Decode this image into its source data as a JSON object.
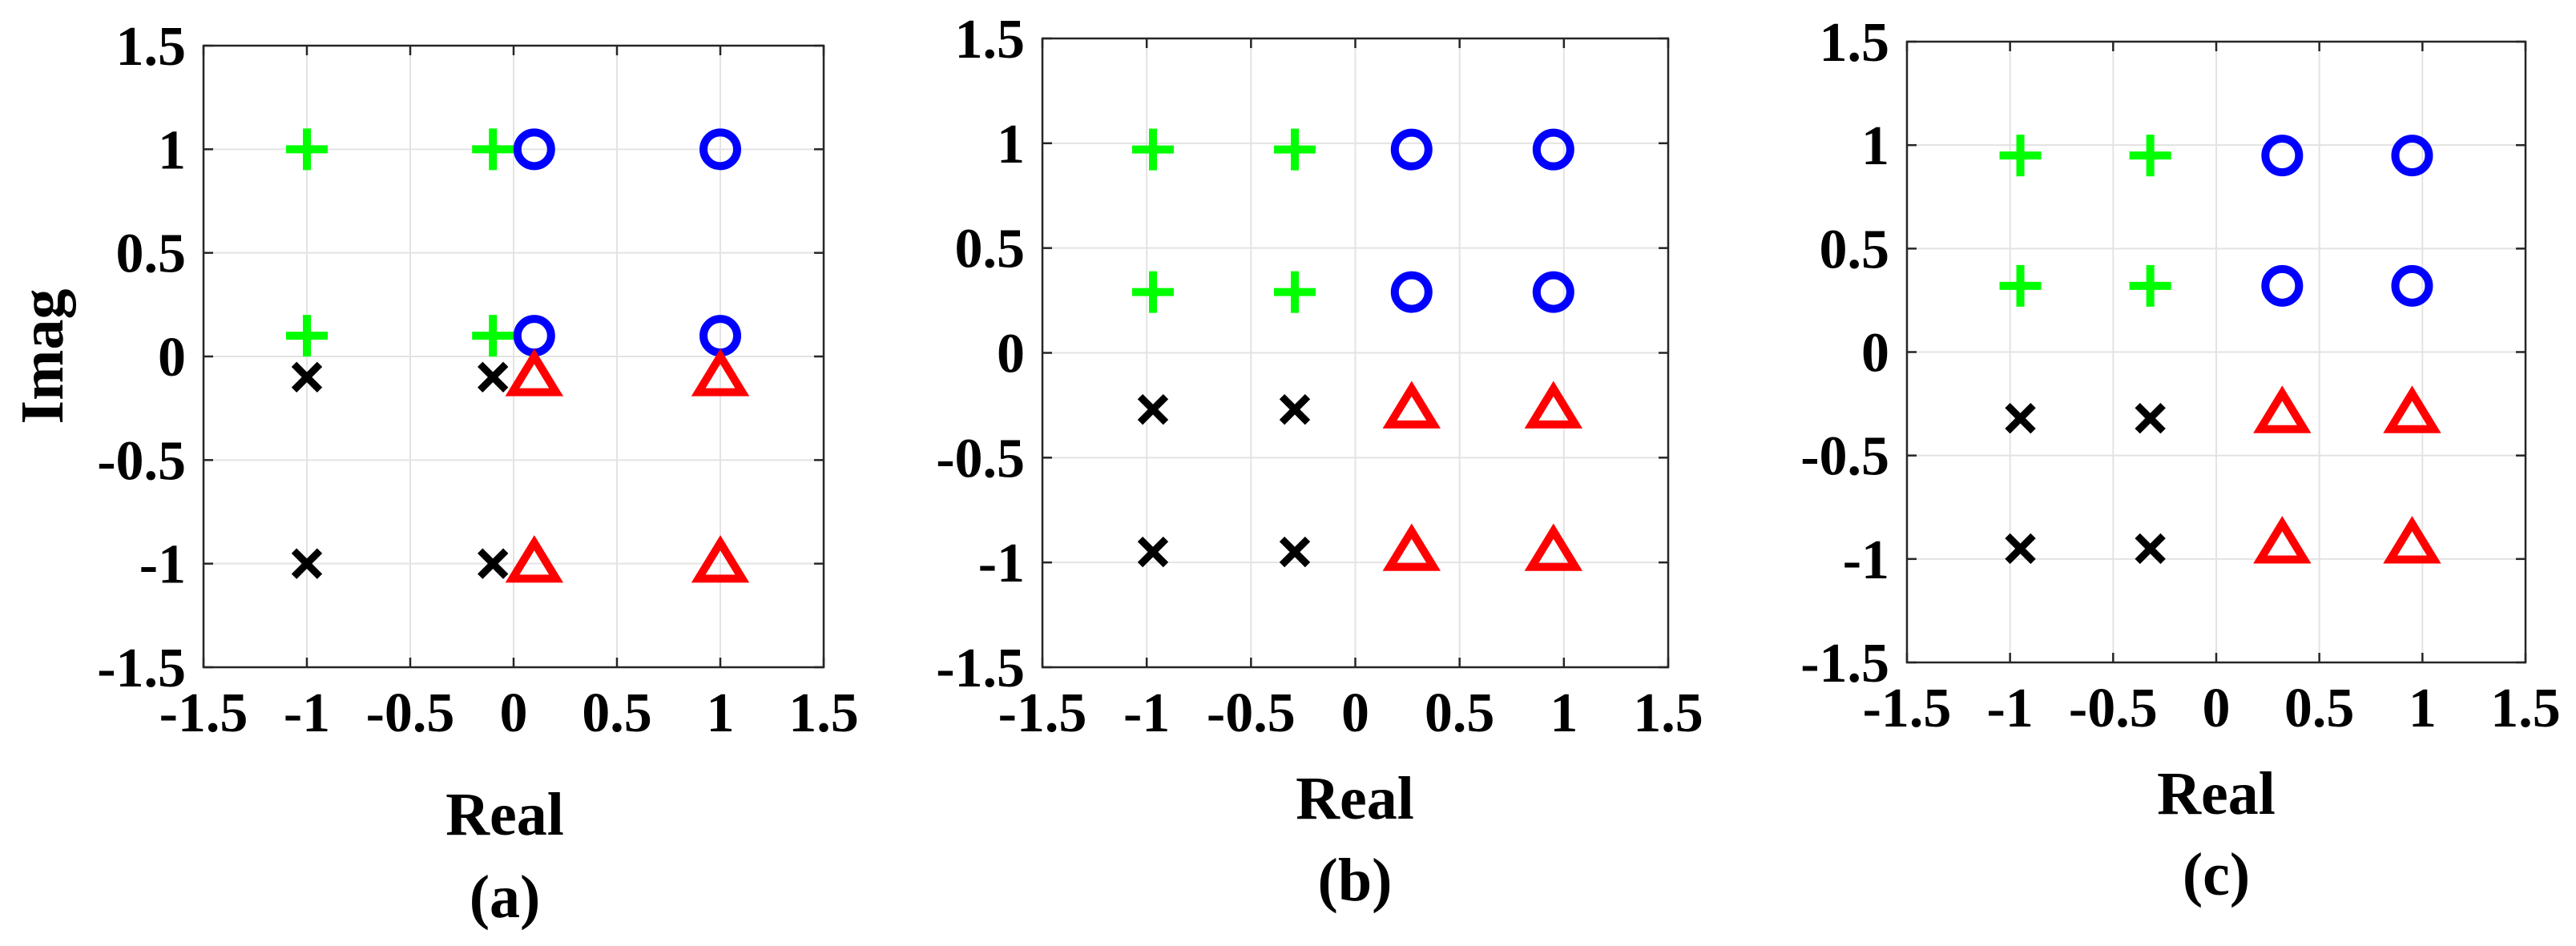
{
  "colors": {
    "plus": "#00ff00",
    "circle": "#0000ff",
    "triangle": "#ff0000",
    "cross": "#000000",
    "grid": "#e3e3e3",
    "axes": "#262626"
  },
  "chart_data": [
    {
      "type": "scatter",
      "caption": "(a)",
      "xlabel": "Real",
      "ylabel": "Imag",
      "xlim": [
        -1.5,
        1.5
      ],
      "ylim": [
        -1.5,
        1.5
      ],
      "xticks": [
        "-1.5",
        "-1",
        "-0.5",
        "0",
        "0.5",
        "1",
        "1.5"
      ],
      "yticks": [
        "-1.5",
        "-1",
        "-0.5",
        "0",
        "0.5",
        "1",
        "1.5"
      ],
      "grid": true,
      "series": [
        {
          "marker": "plus",
          "points": [
            [
              -1,
              1
            ],
            [
              -0.1,
              1
            ],
            [
              -1,
              0.1
            ],
            [
              -0.1,
              0.1
            ]
          ]
        },
        {
          "marker": "circle",
          "points": [
            [
              0.1,
              1
            ],
            [
              1,
              1
            ],
            [
              0.1,
              0.1
            ],
            [
              1,
              0.1
            ]
          ]
        },
        {
          "marker": "cross",
          "points": [
            [
              -1,
              -0.1
            ],
            [
              -0.1,
              -0.1
            ],
            [
              -1,
              -1
            ],
            [
              -0.1,
              -1
            ]
          ]
        },
        {
          "marker": "triangle",
          "points": [
            [
              0.1,
              -0.1
            ],
            [
              1,
              -0.1
            ],
            [
              0.1,
              -1
            ],
            [
              1,
              -1
            ]
          ]
        }
      ]
    },
    {
      "type": "scatter",
      "caption": "(b)",
      "xlabel": "Real",
      "ylabel": "",
      "xlim": [
        -1.5,
        1.5
      ],
      "ylim": [
        -1.5,
        1.5
      ],
      "xticks": [
        "-1.5",
        "-1",
        "-0.5",
        "0",
        "0.5",
        "1",
        "1.5"
      ],
      "yticks": [
        "-1.5",
        "-1",
        "-0.5",
        "0",
        "0.5",
        "1",
        "1.5"
      ],
      "grid": true,
      "series": [
        {
          "marker": "plus",
          "points": [
            [
              -0.97,
              0.97
            ],
            [
              -0.29,
              0.97
            ],
            [
              -0.97,
              0.29
            ],
            [
              -0.29,
              0.29
            ]
          ]
        },
        {
          "marker": "circle",
          "points": [
            [
              0.27,
              0.97
            ],
            [
              0.95,
              0.97
            ],
            [
              0.27,
              0.29
            ],
            [
              0.95,
              0.29
            ]
          ]
        },
        {
          "marker": "cross",
          "points": [
            [
              -0.97,
              -0.27
            ],
            [
              -0.29,
              -0.27
            ],
            [
              -0.97,
              -0.95
            ],
            [
              -0.29,
              -0.95
            ]
          ]
        },
        {
          "marker": "triangle",
          "points": [
            [
              0.27,
              -0.27
            ],
            [
              0.95,
              -0.27
            ],
            [
              0.27,
              -0.95
            ],
            [
              0.95,
              -0.95
            ]
          ]
        }
      ]
    },
    {
      "type": "scatter",
      "caption": "(c)",
      "xlabel": "Real",
      "ylabel": "",
      "xlim": [
        -1.5,
        1.5
      ],
      "ylim": [
        -1.5,
        1.5
      ],
      "xticks": [
        "-1.5",
        "-1",
        "-0.5",
        "0",
        "0.5",
        "1",
        "1.5"
      ],
      "yticks": [
        "-1.5",
        "-1",
        "-0.5",
        "0",
        "0.5",
        "1",
        "1.5"
      ],
      "grid": true,
      "series": [
        {
          "marker": "plus",
          "points": [
            [
              -0.95,
              0.95
            ],
            [
              -0.32,
              0.95
            ],
            [
              -0.95,
              0.32
            ],
            [
              -0.32,
              0.32
            ]
          ]
        },
        {
          "marker": "circle",
          "points": [
            [
              0.32,
              0.95
            ],
            [
              0.95,
              0.95
            ],
            [
              0.32,
              0.32
            ],
            [
              0.95,
              0.32
            ]
          ]
        },
        {
          "marker": "cross",
          "points": [
            [
              -0.95,
              -0.32
            ],
            [
              -0.32,
              -0.32
            ],
            [
              -0.95,
              -0.95
            ],
            [
              -0.32,
              -0.95
            ]
          ]
        },
        {
          "marker": "triangle",
          "points": [
            [
              0.32,
              -0.3
            ],
            [
              0.95,
              -0.3
            ],
            [
              0.32,
              -0.93
            ],
            [
              0.95,
              -0.93
            ]
          ]
        }
      ]
    }
  ]
}
